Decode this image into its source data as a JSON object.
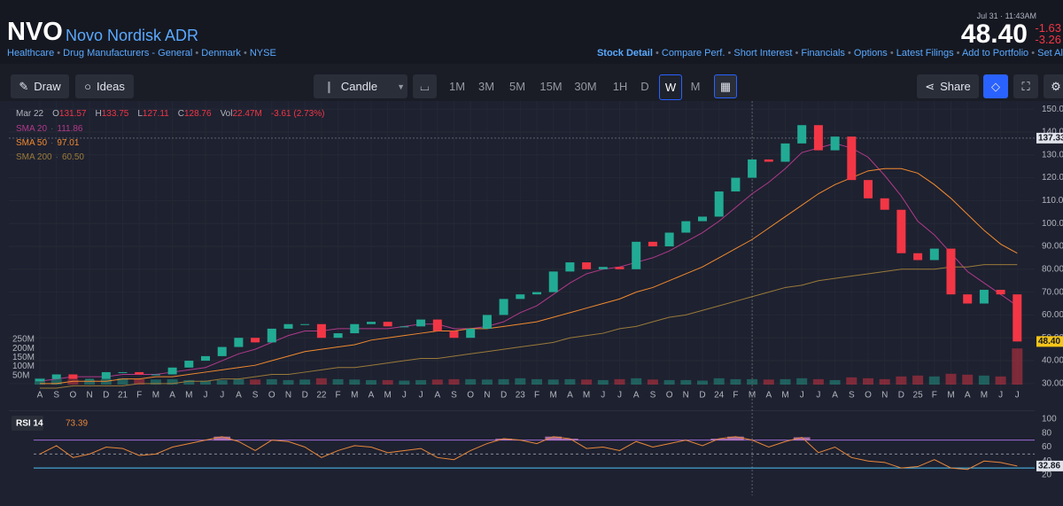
{
  "header": {
    "ticker": "NVO",
    "name": "Novo Nordisk ADR",
    "tags": [
      "Healthcare",
      "Drug Manufacturers - General",
      "Denmark",
      "NYSE"
    ],
    "time": "Jul 31 · 11:43AM",
    "price": "48.40",
    "change": "-1.63",
    "change_pct": "-3.26",
    "links": [
      "Stock Detail",
      "Compare Perf.",
      "Short Interest",
      "Financials",
      "Options",
      "Latest Filings",
      "Add to Portfolio",
      "Set Ale"
    ]
  },
  "toolbar": {
    "left": [
      "Draw",
      "Ideas"
    ],
    "chart_type": "Candle",
    "intervals": [
      "1M",
      "3M",
      "5M",
      "15M",
      "30M",
      "1H",
      "D",
      "W",
      "M"
    ],
    "active": "W",
    "share": "Share"
  },
  "chart_data": {
    "type": "candlestick",
    "legend": {
      "date": "Mar 22",
      "items": [
        {
          "label": "O",
          "value": "131.57"
        },
        {
          "label": "H",
          "value": "133.75"
        },
        {
          "label": "L",
          "value": "127.11"
        },
        {
          "label": "C",
          "value": "128.76"
        },
        {
          "label": "Vol",
          "value": "22.47M"
        }
      ],
      "change": "-3.61 (2.73%)"
    },
    "categories": [
      "A",
      "S",
      "O",
      "N",
      "D",
      "21",
      "F",
      "M",
      "A",
      "M",
      "J",
      "J",
      "A",
      "S",
      "O",
      "N",
      "D",
      "22",
      "F",
      "M",
      "A",
      "M",
      "J",
      "J",
      "A",
      "S",
      "O",
      "N",
      "D",
      "23",
      "F",
      "M",
      "A",
      "M",
      "J",
      "J",
      "A",
      "S",
      "O",
      "N",
      "D",
      "24",
      "F",
      "M",
      "A",
      "M",
      "J",
      "J",
      "A",
      "S",
      "O",
      "N",
      "D",
      "25",
      "F",
      "M",
      "A",
      "M",
      "J",
      "J"
    ],
    "open": [
      31,
      32,
      34,
      32,
      32,
      35,
      35,
      34,
      34,
      37,
      40,
      42,
      46,
      50,
      48,
      54,
      56,
      56,
      50,
      52,
      56,
      57,
      55,
      55,
      58,
      53,
      50,
      54,
      60,
      67,
      69,
      70,
      79,
      83,
      80,
      81,
      80,
      92,
      90,
      96,
      101,
      103,
      114,
      120,
      128,
      127,
      135,
      143,
      132,
      138,
      119,
      111,
      106,
      87,
      84,
      89,
      69,
      65,
      71,
      69
    ],
    "close": [
      32,
      34,
      32,
      32,
      35,
      35,
      34,
      34,
      37,
      40,
      42,
      46,
      50,
      48,
      54,
      56,
      56,
      50,
      52,
      56,
      57,
      55,
      55,
      58,
      53,
      50,
      54,
      60,
      67,
      69,
      70,
      79,
      83,
      80,
      81,
      80,
      92,
      90,
      96,
      101,
      103,
      114,
      120,
      128,
      127,
      135,
      143,
      132,
      138,
      119,
      111,
      106,
      87,
      84,
      89,
      69,
      65,
      71,
      69,
      48.4
    ],
    "up_color": "#22ab94",
    "down_color": "#f23645",
    "ylim": [
      28,
      152
    ],
    "yticks": [
      {
        "value": 30,
        "label": "30.00"
      },
      {
        "value": 40,
        "label": "40.00"
      },
      {
        "value": 50,
        "label": "50.00"
      },
      {
        "value": 60,
        "label": "60.00"
      },
      {
        "value": 70,
        "label": "70.00"
      },
      {
        "value": 80,
        "label": "80.00"
      },
      {
        "value": 90,
        "label": "90.00"
      },
      {
        "value": 100,
        "label": "100.00"
      },
      {
        "value": 110,
        "label": "110.00"
      },
      {
        "value": 120,
        "label": "120.00"
      },
      {
        "value": 130,
        "label": "130.00"
      },
      {
        "value": 140,
        "label": "140.00"
      },
      {
        "value": 150,
        "label": "150.00"
      }
    ],
    "grid": true,
    "series": [
      {
        "name": "SMA 20",
        "value_label": "111.86",
        "color": "#b03a8a",
        "values": [
          31,
          32,
          33,
          33,
          33,
          34,
          34,
          34,
          35,
          36,
          37,
          40,
          43,
          45,
          48,
          51,
          53,
          53,
          54,
          54,
          54,
          54,
          55,
          56,
          56,
          54,
          54,
          55,
          57,
          61,
          64,
          69,
          74,
          78,
          80,
          81,
          83,
          85,
          88,
          92,
          96,
          101,
          107,
          113,
          118,
          124,
          131,
          133,
          135,
          133,
          129,
          121,
          112,
          101,
          95,
          87,
          79,
          74,
          69,
          64
        ]
      },
      {
        "name": "SMA 50",
        "value_label": "97.01",
        "color": "#f28a2e",
        "values": [
          30,
          30,
          31,
          31,
          31,
          32,
          32,
          33,
          33,
          34,
          35,
          36,
          37,
          38,
          40,
          42,
          44,
          45,
          46,
          47,
          49,
          50,
          51,
          52,
          53,
          53,
          54,
          54,
          55,
          56,
          57,
          59,
          61,
          63,
          65,
          67,
          70,
          72,
          75,
          78,
          81,
          85,
          89,
          93,
          98,
          103,
          108,
          113,
          117,
          120,
          123,
          124,
          124,
          122,
          117,
          111,
          104,
          97,
          91,
          87
        ]
      },
      {
        "name": "SMA 200",
        "value_label": "60.50",
        "color": "#9a7a3a",
        "values": [
          28,
          28,
          29,
          29,
          29,
          29,
          30,
          30,
          30,
          31,
          31,
          32,
          32,
          33,
          34,
          34,
          35,
          36,
          37,
          37,
          38,
          39,
          40,
          41,
          41,
          42,
          43,
          44,
          45,
          46,
          47,
          48,
          50,
          51,
          52,
          54,
          55,
          57,
          59,
          60,
          62,
          64,
          66,
          68,
          70,
          72,
          73,
          75,
          76,
          77,
          78,
          79,
          80,
          80,
          80,
          81,
          81,
          82,
          82,
          82
        ]
      }
    ],
    "crosshair": {
      "index": 43,
      "value": 137.33
    },
    "last": {
      "value": 48.4,
      "label": "48.40"
    },
    "volume": {
      "values": [
        35,
        30,
        28,
        25,
        30,
        35,
        30,
        28,
        30,
        25,
        22,
        25,
        30,
        28,
        30,
        25,
        28,
        35,
        30,
        28,
        25,
        25,
        22,
        25,
        28,
        30,
        30,
        28,
        30,
        35,
        30,
        28,
        30,
        28,
        25,
        30,
        35,
        28,
        25,
        25,
        22,
        35,
        30,
        30,
        28,
        30,
        35,
        30,
        25,
        40,
        35,
        30,
        45,
        50,
        45,
        60,
        55,
        50,
        45,
        200
      ],
      "ylim": [
        0,
        300
      ],
      "yticks": [
        {
          "value": 50,
          "label": "50M"
        },
        {
          "value": 100,
          "label": "100M"
        },
        {
          "value": 150,
          "label": "150M"
        },
        {
          "value": 200,
          "label": "200M"
        },
        {
          "value": 250,
          "label": "250M"
        }
      ]
    },
    "rsi": {
      "name": "RSI 14",
      "value_label": "73.39",
      "color": "#e8873a",
      "values": [
        50,
        62,
        45,
        50,
        60,
        58,
        48,
        50,
        60,
        65,
        70,
        75,
        68,
        55,
        70,
        68,
        60,
        45,
        55,
        62,
        60,
        52,
        55,
        58,
        45,
        42,
        55,
        65,
        72,
        70,
        65,
        75,
        72,
        58,
        60,
        55,
        68,
        60,
        65,
        70,
        62,
        72,
        75,
        70,
        60,
        68,
        74,
        52,
        60,
        45,
        40,
        38,
        30,
        32,
        42,
        30,
        28,
        40,
        38,
        32.86
      ],
      "last_label": "32.86",
      "ylim": [
        0,
        110
      ],
      "yticks": [
        20,
        40,
        60,
        80,
        100
      ],
      "levels": [
        70,
        50,
        30
      ]
    }
  }
}
